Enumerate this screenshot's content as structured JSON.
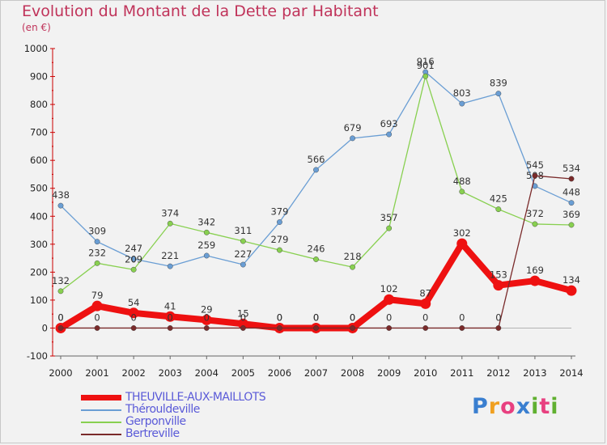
{
  "title": "Evolution du Montant de la Dette par Habitant",
  "unit": "(en €)",
  "logo": {
    "text": "Proxiti",
    "colors": [
      "#3a7fd0",
      "#f0a020",
      "#e84080",
      "#3a7fd0",
      "#60b030",
      "#e84080",
      "#60b030"
    ]
  },
  "chart_data": {
    "type": "line",
    "title": "Evolution du Montant de la Dette par Habitant",
    "ylabel": "(en €)",
    "xlabel": "",
    "ylim": [
      -100,
      1000
    ],
    "yticks": [
      -100,
      0,
      100,
      200,
      300,
      400,
      500,
      600,
      700,
      800,
      900,
      1000
    ],
    "x": [
      "2000",
      "2001",
      "2002",
      "2003",
      "2004",
      "2005",
      "2006",
      "2007",
      "2008",
      "2009",
      "2010",
      "2011",
      "2012",
      "2013",
      "2014"
    ],
    "grid": false,
    "legend_position": "bottom-left",
    "series": [
      {
        "name": "THEUVILLE-AUX-MAILLOTS",
        "color": "#ee1111",
        "width": 8,
        "values": [
          0,
          79,
          54,
          41,
          29,
          15,
          0,
          0,
          0,
          102,
          87,
          302,
          153,
          169,
          134
        ]
      },
      {
        "name": "Thérouldeville",
        "color": "#6a9ed4",
        "width": 1.3,
        "values": [
          438,
          309,
          247,
          221,
          259,
          227,
          379,
          566,
          679,
          693,
          916,
          803,
          839,
          508,
          448
        ]
      },
      {
        "name": "Gerponville",
        "color": "#88d050",
        "width": 1.3,
        "values": [
          132,
          232,
          209,
          374,
          342,
          311,
          279,
          246,
          218,
          357,
          901,
          488,
          425,
          372,
          369
        ]
      },
      {
        "name": "Bertreville",
        "color": "#7a2a2a",
        "width": 1.3,
        "values": [
          0,
          0,
          0,
          0,
          0,
          0,
          0,
          0,
          0,
          0,
          0,
          0,
          0,
          545,
          534
        ]
      }
    ]
  }
}
